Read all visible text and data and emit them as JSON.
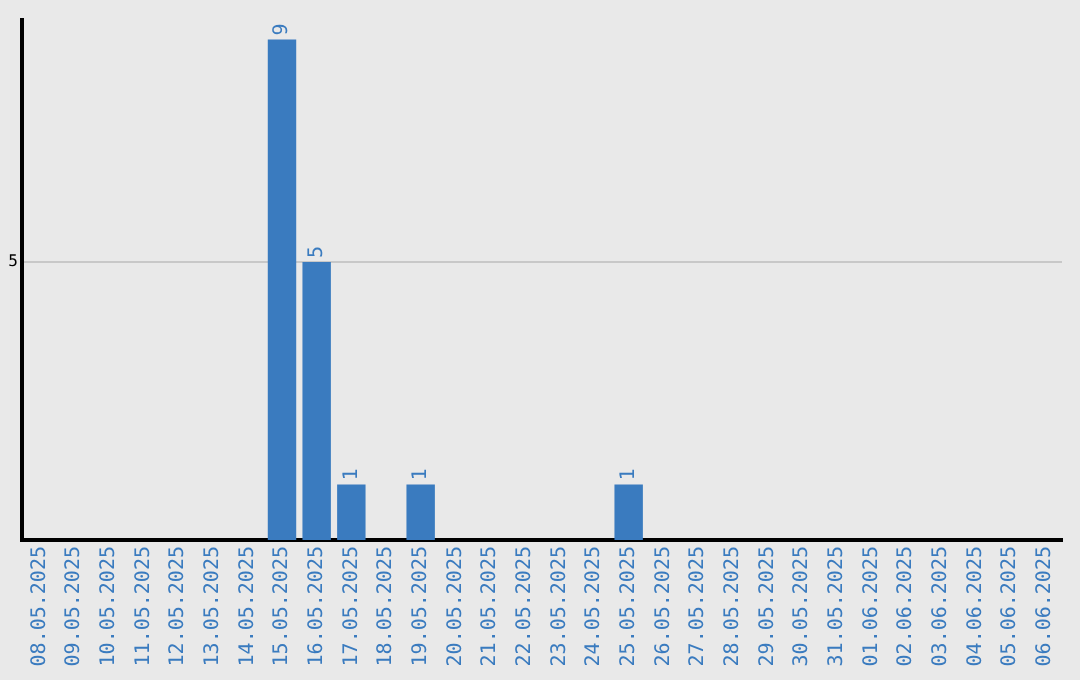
{
  "chart_data": {
    "type": "bar",
    "categories": [
      "08.05.2025",
      "09.05.2025",
      "10.05.2025",
      "11.05.2025",
      "12.05.2025",
      "13.05.2025",
      "14.05.2025",
      "15.05.2025",
      "16.05.2025",
      "17.05.2025",
      "18.05.2025",
      "19.05.2025",
      "20.05.2025",
      "21.05.2025",
      "22.05.2025",
      "23.05.2025",
      "24.05.2025",
      "25.05.2025",
      "26.05.2025",
      "27.05.2025",
      "28.05.2025",
      "29.05.2025",
      "30.05.2025",
      "31.05.2025",
      "01.06.2025",
      "02.06.2025",
      "03.06.2025",
      "04.06.2025",
      "05.06.2025",
      "06.06.2025"
    ],
    "values": [
      0,
      0,
      0,
      0,
      0,
      0,
      0,
      9,
      5,
      1,
      0,
      1,
      0,
      0,
      0,
      0,
      0,
      1,
      0,
      0,
      0,
      0,
      0,
      0,
      0,
      0,
      0,
      0,
      0,
      0
    ],
    "value_labels": [
      null,
      null,
      null,
      null,
      null,
      null,
      null,
      "9",
      "5",
      "1",
      null,
      "1",
      null,
      null,
      null,
      null,
      null,
      "1",
      null,
      null,
      null,
      null,
      null,
      null,
      null,
      null,
      null,
      null,
      null,
      null
    ],
    "color": "#3a7bbf",
    "ylim": [
      0,
      9.35
    ],
    "yticks": [
      5
    ],
    "grid": "y",
    "legend": false
  }
}
